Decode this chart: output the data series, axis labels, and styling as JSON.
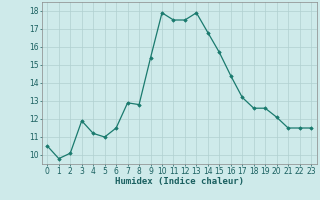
{
  "x": [
    0,
    1,
    2,
    3,
    4,
    5,
    6,
    7,
    8,
    9,
    10,
    11,
    12,
    13,
    14,
    15,
    16,
    17,
    18,
    19,
    20,
    21,
    22,
    23
  ],
  "y": [
    10.5,
    9.8,
    10.1,
    11.9,
    11.2,
    11.0,
    11.5,
    12.9,
    12.8,
    15.4,
    17.9,
    17.5,
    17.5,
    17.9,
    16.8,
    15.7,
    14.4,
    13.2,
    12.6,
    12.6,
    12.1,
    11.5,
    11.5,
    11.5
  ],
  "line_color": "#1a7a6e",
  "marker": "D",
  "marker_size": 1.8,
  "bg_color": "#ceeaea",
  "grid_color": "#b0d0d0",
  "xlabel": "Humidex (Indice chaleur)",
  "ylabel": "",
  "xlim": [
    -0.5,
    23.5
  ],
  "ylim": [
    9.5,
    18.5
  ],
  "yticks": [
    10,
    11,
    12,
    13,
    14,
    15,
    16,
    17,
    18
  ],
  "xticks": [
    0,
    1,
    2,
    3,
    4,
    5,
    6,
    7,
    8,
    9,
    10,
    11,
    12,
    13,
    14,
    15,
    16,
    17,
    18,
    19,
    20,
    21,
    22,
    23
  ],
  "xlabel_fontsize": 6.5,
  "tick_fontsize": 5.5,
  "linewidth": 0.9
}
